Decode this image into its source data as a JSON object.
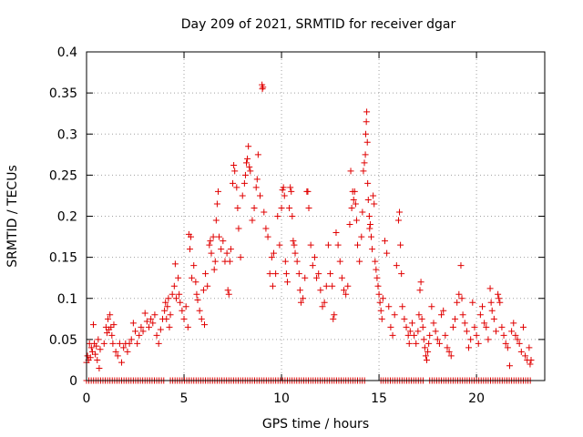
{
  "chart_data": {
    "type": "scatter",
    "title": "Day 209 of 2021, SRMTID for receiver dgar",
    "xlabel": "GPS time / hours",
    "ylabel": "SRMTID / TECUs",
    "xlim": [
      0,
      23.5
    ],
    "ylim": [
      0,
      0.4
    ],
    "grid": true,
    "marker": "+",
    "color": "#e00000",
    "xticks": [
      {
        "v": 0,
        "label": "0"
      },
      {
        "v": 5,
        "label": "5"
      },
      {
        "v": 10,
        "label": "10"
      },
      {
        "v": 15,
        "label": "15"
      },
      {
        "v": 20,
        "label": "20"
      }
    ],
    "yticks": [
      {
        "v": 0,
        "label": "0"
      },
      {
        "v": 0.05,
        "label": "0.05"
      },
      {
        "v": 0.1,
        "label": "0.1"
      },
      {
        "v": 0.15,
        "label": "0.15"
      },
      {
        "v": 0.2,
        "label": "0.2"
      },
      {
        "v": 0.25,
        "label": "0.25"
      },
      {
        "v": 0.3,
        "label": "0.3"
      },
      {
        "v": 0.35,
        "label": "0.35"
      },
      {
        "v": 0.4,
        "label": "0.4"
      }
    ],
    "zero_segments": [
      [
        0,
        4.0
      ],
      [
        4.3,
        14.3
      ],
      [
        15.1,
        17.3
      ],
      [
        17.6,
        22.8
      ]
    ],
    "zero_step": 0.12,
    "points": [
      [
        0.0,
        0.022
      ],
      [
        0.05,
        0.03
      ],
      [
        0.1,
        0.025
      ],
      [
        0.15,
        0.045
      ],
      [
        0.2,
        0.028
      ],
      [
        0.25,
        0.04
      ],
      [
        0.3,
        0.035
      ],
      [
        0.35,
        0.068
      ],
      [
        0.4,
        0.045
      ],
      [
        0.45,
        0.032
      ],
      [
        0.5,
        0.042
      ],
      [
        0.55,
        0.025
      ],
      [
        0.6,
        0.05
      ],
      [
        0.65,
        0.015
      ],
      [
        0.7,
        0.038
      ],
      [
        0.9,
        0.045
      ],
      [
        1.0,
        0.065
      ],
      [
        1.05,
        0.058
      ],
      [
        1.1,
        0.075
      ],
      [
        1.15,
        0.062
      ],
      [
        1.2,
        0.08
      ],
      [
        1.25,
        0.065
      ],
      [
        1.3,
        0.055
      ],
      [
        1.35,
        0.045
      ],
      [
        1.4,
        0.068
      ],
      [
        1.5,
        0.035
      ],
      [
        1.6,
        0.03
      ],
      [
        1.7,
        0.045
      ],
      [
        1.8,
        0.022
      ],
      [
        1.9,
        0.04
      ],
      [
        2.0,
        0.045
      ],
      [
        2.1,
        0.035
      ],
      [
        2.2,
        0.045
      ],
      [
        2.3,
        0.05
      ],
      [
        2.4,
        0.07
      ],
      [
        2.5,
        0.06
      ],
      [
        2.6,
        0.045
      ],
      [
        2.7,
        0.055
      ],
      [
        2.8,
        0.065
      ],
      [
        2.9,
        0.06
      ],
      [
        3.0,
        0.082
      ],
      [
        3.1,
        0.072
      ],
      [
        3.2,
        0.065
      ],
      [
        3.3,
        0.075
      ],
      [
        3.4,
        0.07
      ],
      [
        3.5,
        0.08
      ],
      [
        3.6,
        0.055
      ],
      [
        3.7,
        0.045
      ],
      [
        3.8,
        0.062
      ],
      [
        3.9,
        0.075
      ],
      [
        4.0,
        0.085
      ],
      [
        4.05,
        0.095
      ],
      [
        4.1,
        0.075
      ],
      [
        4.15,
        0.09
      ],
      [
        4.2,
        0.1
      ],
      [
        4.25,
        0.065
      ],
      [
        4.3,
        0.08
      ],
      [
        4.4,
        0.105
      ],
      [
        4.5,
        0.115
      ],
      [
        4.55,
        0.142
      ],
      [
        4.6,
        0.1
      ],
      [
        4.7,
        0.125
      ],
      [
        4.75,
        0.105
      ],
      [
        4.8,
        0.095
      ],
      [
        4.9,
        0.085
      ],
      [
        5.0,
        0.075
      ],
      [
        5.1,
        0.09
      ],
      [
        5.2,
        0.065
      ],
      [
        5.25,
        0.178
      ],
      [
        5.3,
        0.16
      ],
      [
        5.35,
        0.175
      ],
      [
        5.4,
        0.125
      ],
      [
        5.5,
        0.14
      ],
      [
        5.6,
        0.12
      ],
      [
        5.65,
        0.105
      ],
      [
        5.7,
        0.098
      ],
      [
        5.8,
        0.085
      ],
      [
        5.9,
        0.075
      ],
      [
        6.0,
        0.11
      ],
      [
        6.05,
        0.068
      ],
      [
        6.1,
        0.13
      ],
      [
        6.2,
        0.115
      ],
      [
        6.3,
        0.165
      ],
      [
        6.35,
        0.17
      ],
      [
        6.4,
        0.155
      ],
      [
        6.5,
        0.175
      ],
      [
        6.55,
        0.135
      ],
      [
        6.6,
        0.145
      ],
      [
        6.65,
        0.195
      ],
      [
        6.7,
        0.215
      ],
      [
        6.75,
        0.23
      ],
      [
        6.8,
        0.175
      ],
      [
        6.9,
        0.16
      ],
      [
        7.0,
        0.17
      ],
      [
        7.1,
        0.145
      ],
      [
        7.2,
        0.155
      ],
      [
        7.25,
        0.11
      ],
      [
        7.3,
        0.105
      ],
      [
        7.35,
        0.145
      ],
      [
        7.4,
        0.16
      ],
      [
        7.5,
        0.24
      ],
      [
        7.55,
        0.262
      ],
      [
        7.6,
        0.255
      ],
      [
        7.7,
        0.235
      ],
      [
        7.75,
        0.21
      ],
      [
        7.8,
        0.185
      ],
      [
        7.9,
        0.15
      ],
      [
        8.0,
        0.225
      ],
      [
        8.1,
        0.24
      ],
      [
        8.15,
        0.25
      ],
      [
        8.2,
        0.265
      ],
      [
        8.25,
        0.27
      ],
      [
        8.3,
        0.285
      ],
      [
        8.35,
        0.26
      ],
      [
        8.4,
        0.255
      ],
      [
        8.5,
        0.195
      ],
      [
        8.6,
        0.21
      ],
      [
        8.7,
        0.235
      ],
      [
        8.75,
        0.245
      ],
      [
        8.8,
        0.275
      ],
      [
        8.9,
        0.225
      ],
      [
        9.0,
        0.36
      ],
      [
        9.02,
        0.355
      ],
      [
        9.05,
        0.357
      ],
      [
        9.1,
        0.205
      ],
      [
        9.2,
        0.185
      ],
      [
        9.3,
        0.175
      ],
      [
        9.4,
        0.13
      ],
      [
        9.5,
        0.15
      ],
      [
        9.55,
        0.115
      ],
      [
        9.6,
        0.155
      ],
      [
        9.7,
        0.13
      ],
      [
        9.8,
        0.2
      ],
      [
        9.9,
        0.165
      ],
      [
        10.0,
        0.21
      ],
      [
        10.05,
        0.232
      ],
      [
        10.1,
        0.235
      ],
      [
        10.15,
        0.225
      ],
      [
        10.2,
        0.145
      ],
      [
        10.25,
        0.13
      ],
      [
        10.3,
        0.12
      ],
      [
        10.4,
        0.21
      ],
      [
        10.45,
        0.235
      ],
      [
        10.5,
        0.23
      ],
      [
        10.55,
        0.2
      ],
      [
        10.6,
        0.17
      ],
      [
        10.65,
        0.165
      ],
      [
        10.7,
        0.155
      ],
      [
        10.8,
        0.145
      ],
      [
        10.9,
        0.13
      ],
      [
        10.95,
        0.11
      ],
      [
        11.0,
        0.095
      ],
      [
        11.1,
        0.1
      ],
      [
        11.2,
        0.125
      ],
      [
        11.3,
        0.23
      ],
      [
        11.35,
        0.23
      ],
      [
        11.4,
        0.21
      ],
      [
        11.5,
        0.165
      ],
      [
        11.6,
        0.14
      ],
      [
        11.7,
        0.15
      ],
      [
        11.8,
        0.125
      ],
      [
        11.9,
        0.13
      ],
      [
        12.0,
        0.11
      ],
      [
        12.1,
        0.09
      ],
      [
        12.2,
        0.095
      ],
      [
        12.3,
        0.115
      ],
      [
        12.4,
        0.165
      ],
      [
        12.5,
        0.13
      ],
      [
        12.6,
        0.115
      ],
      [
        12.65,
        0.075
      ],
      [
        12.7,
        0.08
      ],
      [
        12.8,
        0.18
      ],
      [
        12.9,
        0.165
      ],
      [
        13.0,
        0.145
      ],
      [
        13.1,
        0.125
      ],
      [
        13.2,
        0.11
      ],
      [
        13.3,
        0.105
      ],
      [
        13.4,
        0.115
      ],
      [
        13.5,
        0.19
      ],
      [
        13.55,
        0.255
      ],
      [
        13.6,
        0.21
      ],
      [
        13.65,
        0.23
      ],
      [
        13.7,
        0.22
      ],
      [
        13.75,
        0.23
      ],
      [
        13.8,
        0.215
      ],
      [
        13.85,
        0.195
      ],
      [
        13.9,
        0.165
      ],
      [
        14.0,
        0.145
      ],
      [
        14.1,
        0.175
      ],
      [
        14.15,
        0.205
      ],
      [
        14.2,
        0.255
      ],
      [
        14.25,
        0.265
      ],
      [
        14.3,
        0.275
      ],
      [
        14.32,
        0.3
      ],
      [
        14.35,
        0.315
      ],
      [
        14.37,
        0.327
      ],
      [
        14.4,
        0.29
      ],
      [
        14.42,
        0.24
      ],
      [
        14.45,
        0.22
      ],
      [
        14.5,
        0.2
      ],
      [
        14.52,
        0.185
      ],
      [
        14.55,
        0.19
      ],
      [
        14.6,
        0.175
      ],
      [
        14.65,
        0.16
      ],
      [
        14.7,
        0.225
      ],
      [
        14.75,
        0.215
      ],
      [
        14.8,
        0.145
      ],
      [
        14.85,
        0.135
      ],
      [
        14.9,
        0.125
      ],
      [
        14.95,
        0.115
      ],
      [
        15.0,
        0.105
      ],
      [
        15.05,
        0.095
      ],
      [
        15.1,
        0.085
      ],
      [
        15.15,
        0.075
      ],
      [
        15.2,
        0.1
      ],
      [
        15.3,
        0.17
      ],
      [
        15.4,
        0.155
      ],
      [
        15.5,
        0.09
      ],
      [
        15.6,
        0.065
      ],
      [
        15.7,
        0.055
      ],
      [
        15.8,
        0.08
      ],
      [
        15.9,
        0.14
      ],
      [
        16.0,
        0.195
      ],
      [
        16.05,
        0.205
      ],
      [
        16.1,
        0.165
      ],
      [
        16.15,
        0.13
      ],
      [
        16.2,
        0.09
      ],
      [
        16.3,
        0.075
      ],
      [
        16.4,
        0.065
      ],
      [
        16.5,
        0.055
      ],
      [
        16.55,
        0.045
      ],
      [
        16.6,
        0.06
      ],
      [
        16.7,
        0.07
      ],
      [
        16.8,
        0.055
      ],
      [
        16.9,
        0.045
      ],
      [
        17.0,
        0.06
      ],
      [
        17.05,
        0.08
      ],
      [
        17.1,
        0.11
      ],
      [
        17.15,
        0.12
      ],
      [
        17.2,
        0.075
      ],
      [
        17.25,
        0.065
      ],
      [
        17.3,
        0.05
      ],
      [
        17.35,
        0.04
      ],
      [
        17.4,
        0.03
      ],
      [
        17.45,
        0.025
      ],
      [
        17.5,
        0.035
      ],
      [
        17.55,
        0.045
      ],
      [
        17.6,
        0.055
      ],
      [
        17.7,
        0.09
      ],
      [
        17.8,
        0.07
      ],
      [
        17.9,
        0.06
      ],
      [
        18.0,
        0.05
      ],
      [
        18.1,
        0.045
      ],
      [
        18.2,
        0.08
      ],
      [
        18.3,
        0.085
      ],
      [
        18.4,
        0.055
      ],
      [
        18.5,
        0.04
      ],
      [
        18.6,
        0.035
      ],
      [
        18.7,
        0.03
      ],
      [
        18.8,
        0.065
      ],
      [
        18.9,
        0.075
      ],
      [
        19.0,
        0.095
      ],
      [
        19.1,
        0.105
      ],
      [
        19.2,
        0.14
      ],
      [
        19.25,
        0.1
      ],
      [
        19.3,
        0.08
      ],
      [
        19.4,
        0.07
      ],
      [
        19.5,
        0.06
      ],
      [
        19.6,
        0.04
      ],
      [
        19.7,
        0.05
      ],
      [
        19.8,
        0.095
      ],
      [
        19.9,
        0.065
      ],
      [
        20.0,
        0.055
      ],
      [
        20.1,
        0.045
      ],
      [
        20.2,
        0.08
      ],
      [
        20.3,
        0.09
      ],
      [
        20.4,
        0.07
      ],
      [
        20.5,
        0.065
      ],
      [
        20.6,
        0.05
      ],
      [
        20.7,
        0.112
      ],
      [
        20.75,
        0.095
      ],
      [
        20.8,
        0.085
      ],
      [
        20.9,
        0.075
      ],
      [
        21.0,
        0.06
      ],
      [
        21.1,
        0.105
      ],
      [
        21.15,
        0.1
      ],
      [
        21.2,
        0.095
      ],
      [
        21.3,
        0.065
      ],
      [
        21.4,
        0.055
      ],
      [
        21.5,
        0.045
      ],
      [
        21.6,
        0.04
      ],
      [
        21.7,
        0.018
      ],
      [
        21.8,
        0.06
      ],
      [
        21.9,
        0.07
      ],
      [
        22.0,
        0.055
      ],
      [
        22.1,
        0.05
      ],
      [
        22.2,
        0.045
      ],
      [
        22.3,
        0.035
      ],
      [
        22.4,
        0.065
      ],
      [
        22.5,
        0.03
      ],
      [
        22.6,
        0.025
      ],
      [
        22.7,
        0.04
      ],
      [
        22.75,
        0.02
      ],
      [
        22.8,
        0.025
      ]
    ]
  }
}
